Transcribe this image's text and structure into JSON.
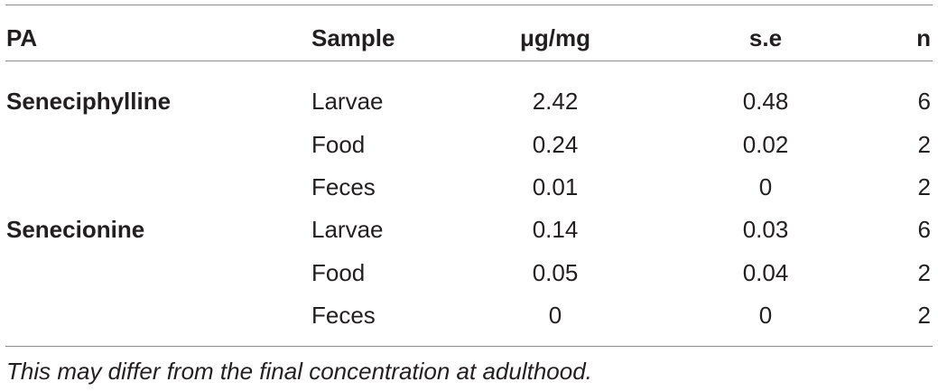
{
  "table": {
    "headers": {
      "pa": "PA",
      "sample": "Sample",
      "ug_mg": "μg/mg",
      "se": "s.e",
      "n": "n"
    },
    "groups": [
      {
        "pa": "Seneciphylline",
        "rows": [
          {
            "sample": "Larvae",
            "ug_mg": "2.42",
            "se": "0.48",
            "n": "6"
          },
          {
            "sample": "Food",
            "ug_mg": "0.24",
            "se": "0.02",
            "n": "2"
          },
          {
            "sample": "Feces",
            "ug_mg": "0.01",
            "se": "0",
            "n": "2"
          }
        ]
      },
      {
        "pa": "Senecionine",
        "rows": [
          {
            "sample": "Larvae",
            "ug_mg": "0.14",
            "se": "0.03",
            "n": "6"
          },
          {
            "sample": "Food",
            "ug_mg": "0.05",
            "se": "0.04",
            "n": "2"
          },
          {
            "sample": "Feces",
            "ug_mg": "0",
            "se": "0",
            "n": "2"
          }
        ]
      }
    ]
  },
  "footnote": "This may differ from the final concentration at adulthood."
}
